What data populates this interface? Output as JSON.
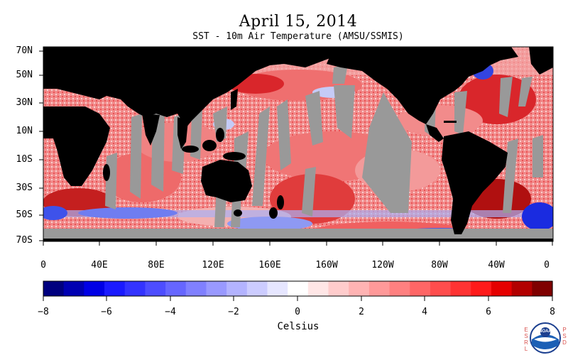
{
  "header": {
    "title": "April 15, 2014",
    "subtitle": "SST - 10m Air Temperature (AMSU/SSMIS)"
  },
  "map": {
    "lat_labels": [
      "70N",
      "50N",
      "30N",
      "10N",
      "10S",
      "30S",
      "50S",
      "70S"
    ],
    "lon_labels": [
      "0",
      "40E",
      "80E",
      "120E",
      "160E",
      "160W",
      "120W",
      "80W",
      "40W",
      "0"
    ],
    "colors": {
      "land": "#000000",
      "missing": "#999999",
      "warm": "#e8363a",
      "warm_light": "#f7b5b5",
      "cool": "#3a4fe8",
      "cool_light": "#b5bdf7"
    }
  },
  "colorbar": {
    "tick_labels": [
      "−8",
      "−6",
      "−4",
      "−2",
      "0",
      "2",
      "4",
      "6",
      "8"
    ],
    "units": "Celsius",
    "colors": [
      "#00007f",
      "#0000b2",
      "#0000e5",
      "#1a1aff",
      "#3333ff",
      "#4d4dff",
      "#6666ff",
      "#8080ff",
      "#9999ff",
      "#b3b3ff",
      "#ccccff",
      "#e6e6ff",
      "#ffffff",
      "#ffe6e6",
      "#ffcccc",
      "#ffb3b3",
      "#ff9999",
      "#ff8080",
      "#ff6666",
      "#ff4d4d",
      "#ff3333",
      "#ff1a1a",
      "#e50000",
      "#b20000",
      "#7f0000"
    ]
  },
  "logo": {
    "left_letters": [
      "E",
      "S",
      "R",
      "L"
    ],
    "right_letters": [
      "P",
      "S",
      "D"
    ],
    "badge_text": "NOAA"
  }
}
